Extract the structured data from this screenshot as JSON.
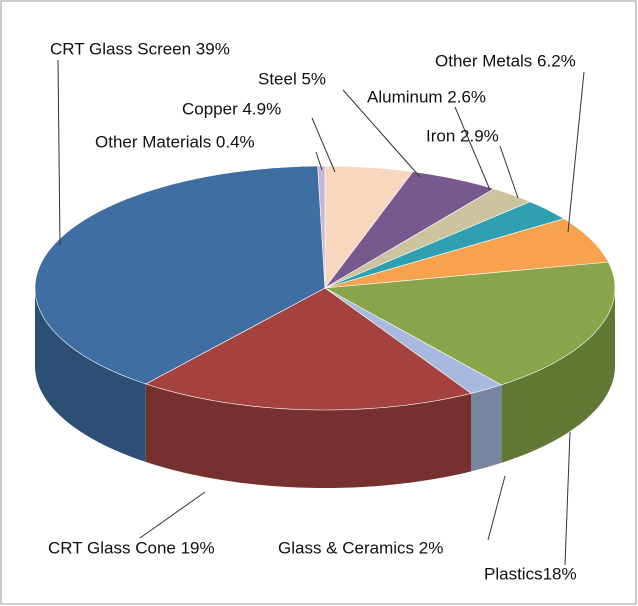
{
  "chart_data": {
    "type": "pie3d",
    "categories": [
      "Copper 4.9%",
      "Steel 5%",
      "Aluminum 2.6%",
      "Iron 2.9%",
      "Other Metals 6.2%",
      "Plastics18%",
      "Glass & Ceramics 2%",
      "CRT Glass Cone 19%",
      "CRT Glass Screen 39%",
      "Other Materials 0.4%"
    ],
    "values": [
      4.9,
      5,
      2.6,
      2.9,
      6.2,
      18,
      2,
      19,
      39,
      0.4
    ],
    "colors": [
      "#f9d7bf",
      "#78598f",
      "#cbc49f",
      "#2f9fb2",
      "#f6a24f",
      "#89a54a",
      "#a7b9de",
      "#a4423f",
      "#3f6ea2",
      "#c9b7d8"
    ]
  }
}
